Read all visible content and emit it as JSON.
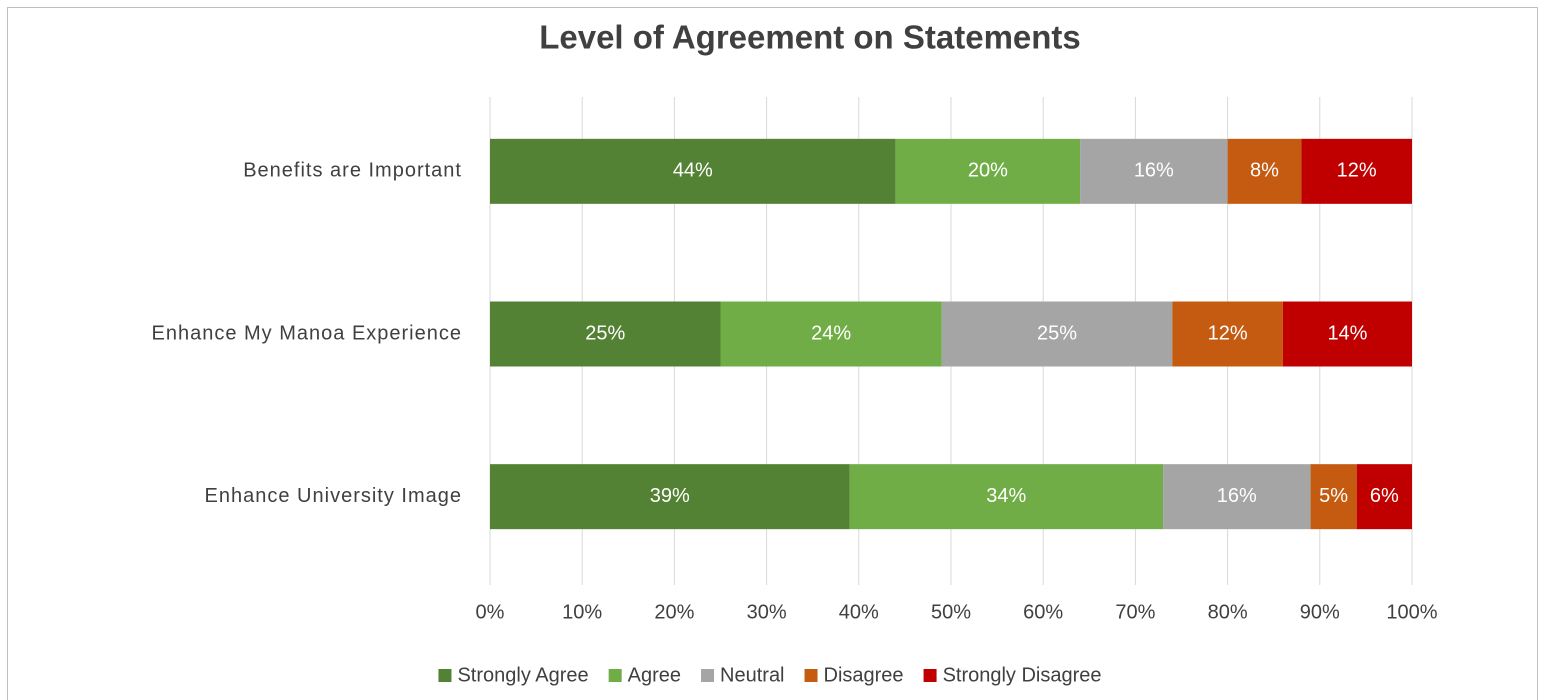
{
  "chart_data": {
    "type": "stacked_bar_horizontal",
    "title": "Level of Agreement on Statements",
    "categories": [
      "Benefits are Important",
      "Enhance My Manoa Experience",
      "Enhance University Image"
    ],
    "series": [
      {
        "name": "Strongly Agree",
        "color": "#548235",
        "values": [
          44,
          25,
          39
        ],
        "value_labels": [
          "44%",
          "25%",
          "39%"
        ]
      },
      {
        "name": "Agree",
        "color": "#70ad47",
        "values": [
          20,
          24,
          34
        ],
        "value_labels": [
          "20%",
          "24%",
          "34%"
        ]
      },
      {
        "name": "Neutral",
        "color": "#a5a5a5",
        "values": [
          16,
          25,
          16
        ],
        "value_labels": [
          "16%",
          "25%",
          "16%"
        ]
      },
      {
        "name": "Disagree",
        "color": "#c55a11",
        "values": [
          8,
          12,
          5
        ],
        "value_labels": [
          "8%",
          "12%",
          "5%"
        ]
      },
      {
        "name": "Strongly Disagree",
        "color": "#c00000",
        "values": [
          12,
          14,
          6
        ],
        "value_labels": [
          "12%",
          "14%",
          "6%"
        ]
      }
    ],
    "xlim": [
      0,
      100
    ],
    "xticks": [
      {
        "value": 0,
        "label": "0%"
      },
      {
        "value": 10,
        "label": "10%"
      },
      {
        "value": 20,
        "label": "20%"
      },
      {
        "value": 30,
        "label": "30%"
      },
      {
        "value": 40,
        "label": "40%"
      },
      {
        "value": 50,
        "label": "50%"
      },
      {
        "value": 60,
        "label": "60%"
      },
      {
        "value": 70,
        "label": "70%"
      },
      {
        "value": 80,
        "label": "80%"
      },
      {
        "value": 90,
        "label": "90%"
      },
      {
        "value": 100,
        "label": "100%"
      }
    ],
    "grid": true,
    "legend": "bottom"
  }
}
